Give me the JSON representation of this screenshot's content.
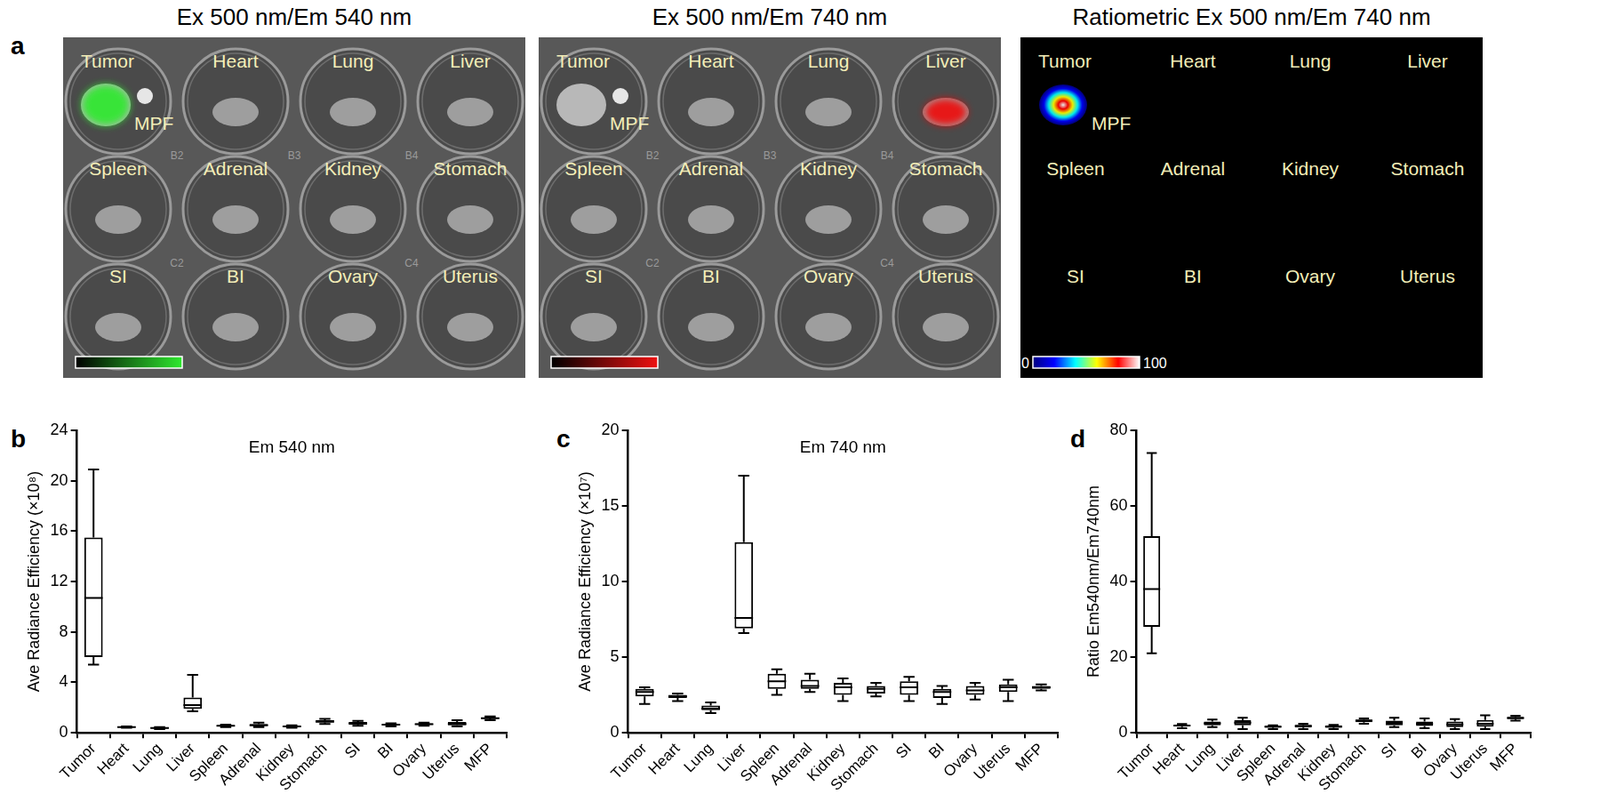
{
  "panel_a": {
    "panel": "a",
    "images": [
      {
        "title": "Ex 500 nm/Em 540 nm",
        "plate": true,
        "background": "#585858",
        "wells": [
          [
            "Tumor",
            "MPF"
          ],
          [
            "Heart"
          ],
          [
            "Lung"
          ],
          [
            "Liver"
          ],
          [
            "Spleen"
          ],
          [
            "Adrenal"
          ],
          [
            "Kidney"
          ],
          [
            "Stomach"
          ],
          [
            "SI"
          ],
          [
            "BI"
          ],
          [
            "Ovary"
          ],
          [
            "Uterus"
          ]
        ],
        "plate_marks": [
          "B2",
          "B3",
          "B4",
          "C2",
          "C4"
        ],
        "signal": {
          "well": "Tumor",
          "colors": [
            "#2ee82e"
          ]
        },
        "colorbar": {
          "colors": [
            "#000000",
            "#2ee82e"
          ]
        }
      },
      {
        "title": "Ex 500 nm/Em 740 nm",
        "plate": true,
        "background": "#585858",
        "wells": [
          [
            "Tumor",
            "MPF"
          ],
          [
            "Heart"
          ],
          [
            "Lung"
          ],
          [
            "Liver"
          ],
          [
            "Spleen"
          ],
          [
            "Adrenal"
          ],
          [
            "Kidney"
          ],
          [
            "Stomach"
          ],
          [
            "SI"
          ],
          [
            "BI"
          ],
          [
            "Ovary"
          ],
          [
            "Uterus"
          ]
        ],
        "plate_marks": [
          "B2",
          "B3",
          "B4",
          "C2",
          "C4"
        ],
        "signal": {
          "well": "Liver",
          "colors": [
            "#ee1111"
          ]
        },
        "colorbar": {
          "colors": [
            "#000000",
            "#ee1111"
          ]
        }
      },
      {
        "title": "Ratiometric Ex 500 nm/Em 740 nm",
        "plate": false,
        "background": "#000000",
        "wells": [
          [
            "Tumor",
            "MPF"
          ],
          [
            "Heart"
          ],
          [
            "Lung"
          ],
          [
            "Liver"
          ],
          [
            "Spleen"
          ],
          [
            "Adrenal"
          ],
          [
            "Kidney"
          ],
          [
            "Stomach"
          ],
          [
            "SI"
          ],
          [
            "BI"
          ],
          [
            "Ovary"
          ],
          [
            "Uterus"
          ]
        ],
        "plate_marks": [],
        "signal": {
          "well": "Tumor",
          "colors": [
            "#000080",
            "#0000ff",
            "#00ffff",
            "#ffff00",
            "#ff0000",
            "#ffffff"
          ]
        },
        "colorbar": {
          "colors": [
            "#000080",
            "#0000ff",
            "#00ffff",
            "#ffff00",
            "#ff0000",
            "#ffffff"
          ],
          "range": [
            0,
            100
          ],
          "ticks": [
            0,
            100
          ]
        }
      }
    ]
  },
  "chart_data": [
    {
      "type": "box",
      "panel": "b",
      "title": "Em 540 nm",
      "y_label": "Ave Radiance Efficiency (×10⁸)",
      "categories": [
        "Tumor",
        "Heart",
        "Lung",
        "Liver",
        "Spleen",
        "Adrenal",
        "Kidney",
        "Stomach",
        "SI",
        "BI",
        "Ovary",
        "Uterus",
        "MFP"
      ],
      "min": [
        5.4,
        0.4,
        0.3,
        1.7,
        0.45,
        0.45,
        0.4,
        0.7,
        0.55,
        0.5,
        0.55,
        0.5,
        1.0
      ],
      "q1": [
        6.0,
        0.43,
        0.33,
        1.9,
        0.5,
        0.55,
        0.45,
        0.8,
        0.65,
        0.58,
        0.62,
        0.6,
        1.1
      ],
      "median": [
        10.7,
        0.45,
        0.38,
        2.2,
        0.55,
        0.6,
        0.5,
        0.9,
        0.75,
        0.65,
        0.68,
        0.7,
        1.15
      ],
      "q3": [
        15.5,
        0.47,
        0.42,
        2.8,
        0.6,
        0.7,
        0.55,
        1.0,
        0.85,
        0.7,
        0.75,
        0.85,
        1.2
      ],
      "max": [
        20.9,
        0.5,
        0.45,
        4.6,
        0.65,
        0.8,
        0.6,
        1.1,
        0.95,
        0.75,
        0.8,
        1.0,
        1.3
      ],
      "color": "#000000",
      "ylim": [
        0,
        24
      ],
      "yticks": [
        0,
        4,
        8,
        12,
        16,
        20,
        24
      ],
      "grid": false
    },
    {
      "type": "box",
      "panel": "c",
      "title": "Em 740 nm",
      "y_label": "Ave Radiance Efficiency (×10⁷)",
      "categories": [
        "Tumor",
        "Heart",
        "Lung",
        "Liver",
        "Spleen",
        "Adrenal",
        "Kidney",
        "Stomach",
        "SI",
        "BI",
        "Ovary",
        "Uterus",
        "MFP"
      ],
      "min": [
        1.9,
        2.1,
        1.3,
        6.6,
        2.5,
        2.7,
        2.1,
        2.4,
        2.1,
        1.9,
        2.2,
        2.1,
        2.8
      ],
      "q1": [
        2.4,
        2.3,
        1.5,
        6.9,
        2.9,
        2.9,
        2.5,
        2.6,
        2.5,
        2.3,
        2.5,
        2.7,
        2.9
      ],
      "median": [
        2.7,
        2.4,
        1.6,
        7.6,
        3.4,
        3.1,
        3.0,
        2.9,
        3.0,
        2.7,
        2.8,
        3.0,
        3.0
      ],
      "q3": [
        2.9,
        2.5,
        1.8,
        12.6,
        3.9,
        3.5,
        3.3,
        3.1,
        3.4,
        2.9,
        3.1,
        3.2,
        3.1
      ],
      "max": [
        3.0,
        2.6,
        2.0,
        17.0,
        4.2,
        3.9,
        3.6,
        3.3,
        3.7,
        3.1,
        3.3,
        3.5,
        3.2
      ],
      "color": "#000000",
      "ylim": [
        0,
        20
      ],
      "yticks": [
        0,
        5,
        10,
        15,
        20
      ],
      "grid": false
    },
    {
      "type": "box",
      "panel": "d",
      "y_label": "Ratio Em540nm/Em740nm",
      "categories": [
        "Tumor",
        "Heart",
        "Lung",
        "Liver",
        "Spleen",
        "Adrenal",
        "Kidney",
        "Stomach",
        "SI",
        "BI",
        "Ovary",
        "Uterus",
        "MFP"
      ],
      "min": [
        21,
        1.2,
        1.5,
        1.0,
        1.0,
        1.0,
        1.0,
        2.4,
        1.5,
        1.2,
        1.0,
        1.0,
        3.2
      ],
      "q1": [
        28,
        1.6,
        2.0,
        2.0,
        1.3,
        1.4,
        1.3,
        2.8,
        2.0,
        1.8,
        1.5,
        1.6,
        3.6
      ],
      "median": [
        38,
        1.9,
        2.5,
        2.7,
        1.6,
        1.8,
        1.6,
        3.2,
        2.6,
        2.4,
        2.2,
        2.4,
        3.9
      ],
      "q3": [
        52,
        2.1,
        3.0,
        3.3,
        1.8,
        2.1,
        1.9,
        3.5,
        3.2,
        3.0,
        3.0,
        3.4,
        4.2
      ],
      "max": [
        74,
        2.3,
        3.5,
        4.0,
        2.0,
        2.4,
        2.1,
        3.8,
        4.0,
        3.8,
        3.6,
        4.6,
        4.5
      ],
      "color": "#000000",
      "ylim": [
        0,
        80
      ],
      "yticks": [
        0,
        20,
        40,
        60,
        80
      ],
      "grid": false
    }
  ]
}
